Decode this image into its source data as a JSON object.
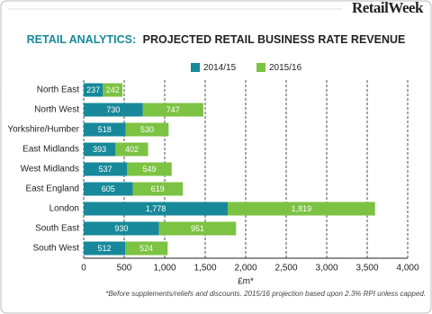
{
  "brand": "RetailWeek",
  "chart_data": {
    "type": "stacked-bar-horizontal",
    "title_highlight": "RETAIL ANALYTICS:",
    "title": "PROJECTED RETAIL BUSINESS RATE REVENUE",
    "categories": [
      "North East",
      "North West",
      "Yorkshire/Humber",
      "East Midlands",
      "West Midlands",
      "East England",
      "London",
      "South East",
      "South West"
    ],
    "series": [
      {
        "name": "2014/15",
        "color": "#17899a",
        "values": [
          237,
          730,
          518,
          393,
          537,
          605,
          1778,
          930,
          512
        ],
        "value_labels": [
          "237",
          "730",
          "518",
          "393",
          "537",
          "605",
          "1,778",
          "930",
          "512"
        ]
      },
      {
        "name": "2015/16",
        "color": "#7cc243",
        "values": [
          242,
          747,
          530,
          402,
          549,
          619,
          1819,
          951,
          524
        ],
        "value_labels": [
          "242",
          "747",
          "530",
          "402",
          "549",
          "619",
          "1,819",
          "951",
          "524"
        ]
      }
    ],
    "xlim": [
      0,
      4000
    ],
    "xticks": [
      0,
      500,
      {
        "value": 1000,
        "label": "1,000"
      },
      {
        "value": 1500,
        "label": "1,500"
      },
      {
        "value": 2000,
        "label": "2,000"
      },
      {
        "value": 2500,
        "label": "2,500"
      },
      {
        "value": 3000,
        "label": "3,000"
      },
      {
        "value": 3500,
        "label": "3,500"
      },
      {
        "value": 4000,
        "label": "4,000"
      }
    ],
    "xlabel": "£m*",
    "grid": true,
    "note": "*Before supplements/reliefs and discounts. 2015/16 projection based upon 2.3% RPI unless capped."
  }
}
